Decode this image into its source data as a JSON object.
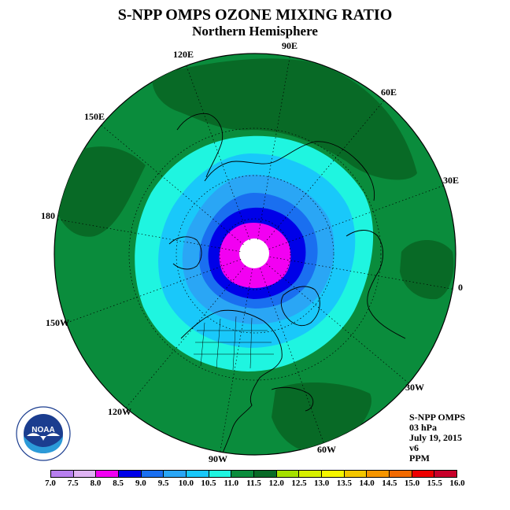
{
  "title": "S-NPP OMPS OZONE MIXING RATIO",
  "subtitle": "Northern Hemisphere",
  "longitude_labels": [
    "90E",
    "60E",
    "30E",
    "0",
    "30W",
    "60W",
    "90W",
    "120W",
    "150W",
    "180",
    "150E",
    "120E"
  ],
  "info": {
    "instrument": "S-NPP OMPS",
    "level": "03 hPa",
    "date": "July 19, 2015",
    "version": "v6",
    "units": "PPM"
  },
  "logo": {
    "text": "NOAA",
    "ring_text": "NATIONAL OCEANIC AND ATMOSPHERIC ADMINISTRATION · U.S. DEPARTMENT OF COMMERCE"
  },
  "colorbar": {
    "tick_labels": [
      "7.0",
      "7.5",
      "8.0",
      "8.5",
      "9.0",
      "9.5",
      "10.0",
      "10.5",
      "11.0",
      "11.5",
      "12.0",
      "12.5",
      "13.0",
      "13.5",
      "14.0",
      "14.5",
      "15.0",
      "15.5",
      "16.0"
    ],
    "colors": [
      "#b77fef",
      "#dfb3f3",
      "#f200f2",
      "#0000e8",
      "#1a6ff0",
      "#2aa6f5",
      "#19c8fa",
      "#1ff5e0",
      "#0a8c3c",
      "#086a26",
      "#a5e000",
      "#d7f000",
      "#f6f600",
      "#f3c600",
      "#f59500",
      "#f26a00",
      "#ee0000",
      "#c8002a",
      "#a05a3c"
    ]
  },
  "contour_levels_ppm": [
    12.0,
    11.5,
    11.0,
    10.5,
    10.0,
    9.5,
    9.0,
    8.5,
    8.0
  ]
}
